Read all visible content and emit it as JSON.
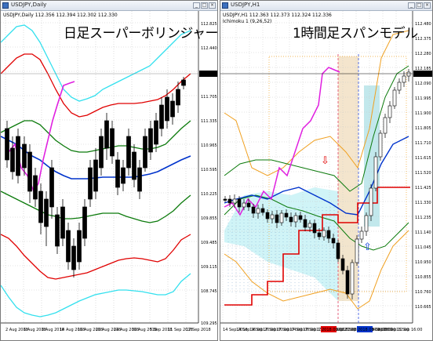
{
  "left_window": {
    "title": "USDJPY,Daily",
    "info_line": "USDJPY,Daily  112.356 112.394 112.302 112.330",
    "headline": "日足スーパーボリンジャー",
    "price_label": "112.330",
    "y_ticks": [
      "112.825",
      "112.440",
      "112.075",
      "111.705",
      "111.335",
      "110.965",
      "110.595",
      "110.225",
      "109.855",
      "109.485",
      "109.115",
      "108.745"
    ],
    "x_ticks": [
      "2 Aug 2018",
      "6 Aug 2018",
      "8 Aug 2018",
      "14 Aug 2018",
      "16 Aug 2018",
      "20 Aug 2018",
      "24 Aug 2018",
      "30 Aug 2018",
      "5 Sep 2018",
      "11 Sep 2018",
      "17 Sep 2018"
    ],
    "bottom_tick": "109.295"
  },
  "right_window": {
    "title": "USDJPY,H1",
    "info_line": "USDJPY,H1  112.363 112.373 112.324 112.336",
    "info_line2": "Ichimoku 1 (9,26,52)",
    "headline": "1時間足スパンモデル",
    "price_label": "112.336",
    "y_ticks": [
      "112.480",
      "112.375",
      "112.280",
      "112.185",
      "112.090",
      "111.995",
      "111.900",
      "111.805",
      "111.710",
      "111.615",
      "111.520",
      "111.425",
      "111.330",
      "111.235",
      "111.140",
      "111.045",
      "110.950",
      "110.855",
      "110.760",
      "110.665"
    ],
    "x_ticks": [
      "14 Sep 2018",
      "14 Sep 16:00",
      "14 Sep 20:00",
      "17 Sep 00:00",
      "17 Sep 04:00",
      "17 Sep 08:00",
      "17 Sep 12:00",
      "17 Sep 16:00",
      "17 Sep 20:00",
      "18 Sep 00:00",
      "18 Sep 04:00",
      "18 Sep 08:00",
      "18 Sep 12:00",
      "18 Sep 16:00"
    ],
    "x_ticks_highlight": [
      "2018.09.18 02:00",
      "2018.09.18 08:00"
    ]
  },
  "colors": {
    "red": "#e00000",
    "green": "#0b7a0b",
    "blue": "#0033cc",
    "cyan": "#33e0ee",
    "magenta": "#e020e0",
    "orange": "#f0a020",
    "cloud": "#c8f2f6"
  }
}
